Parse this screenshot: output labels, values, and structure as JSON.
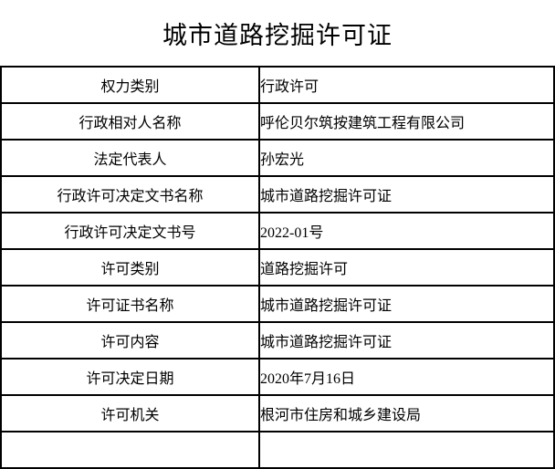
{
  "page": {
    "title": "城市道路挖掘许可证",
    "colors": {
      "background": "#ffffff",
      "text": "#000000",
      "border": "#000000"
    }
  },
  "table": {
    "rows": [
      {
        "label": "权力类别",
        "value": "行政许可"
      },
      {
        "label": "行政相对人名称",
        "value": "呼伦贝尔筑按建筑工程有限公司"
      },
      {
        "label": "法定代表人",
        "value": "孙宏光"
      },
      {
        "label": "行政许可决定文书名称",
        "value": "城市道路挖掘许可证"
      },
      {
        "label": "行政许可决定文书号",
        "value": "2022-01号"
      },
      {
        "label": "许可类别",
        "value": "道路挖掘许可"
      },
      {
        "label": "许可证书名称",
        "value": "城市道路挖掘许可证"
      },
      {
        "label": "许可内容",
        "value": "城市道路挖掘许可证"
      },
      {
        "label": "许可决定日期",
        "value": "2020年7月16日"
      },
      {
        "label": "许可机关",
        "value": "根河市住房和城乡建设局"
      }
    ]
  }
}
